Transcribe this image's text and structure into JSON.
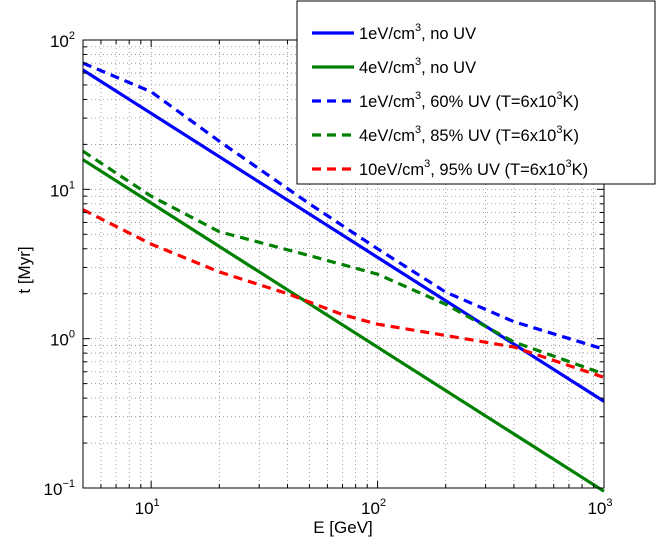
{
  "chart_data": {
    "type": "line",
    "xlabel": "E [GeV]",
    "ylabel": "t [Myr]",
    "x_scale": "log",
    "y_scale": "log",
    "xlim": [
      5,
      1000
    ],
    "ylim": [
      0.1,
      100
    ],
    "grid": true,
    "legend_position": "top-right",
    "x_ticks": [
      {
        "base": "10",
        "exp": "1",
        "value": 10
      },
      {
        "base": "10",
        "exp": "2",
        "value": 100
      },
      {
        "base": "10",
        "exp": "3",
        "value": 1000
      }
    ],
    "y_ticks": [
      {
        "base": "10",
        "exp": "−1",
        "value": 0.1
      },
      {
        "base": "10",
        "exp": "0",
        "value": 1
      },
      {
        "base": "10",
        "exp": "1",
        "value": 10
      },
      {
        "base": "10",
        "exp": "2",
        "value": 100
      }
    ],
    "series": [
      {
        "name_parts": [
          "1eV/cm",
          "3",
          ", no UV",
          "",
          ""
        ],
        "color": "#0000ff",
        "dash": "solid",
        "points": [
          [
            5,
            63.0
          ],
          [
            1000,
            0.38
          ]
        ]
      },
      {
        "name_parts": [
          "4eV/cm",
          "3",
          ", no UV",
          "",
          ""
        ],
        "color": "#008000",
        "dash": "solid",
        "points": [
          [
            5,
            15.8
          ],
          [
            1000,
            0.095
          ]
        ]
      },
      {
        "name_parts": [
          "1eV/cm",
          "3",
          ", 60% UV (T=6x10",
          "3",
          "K)"
        ],
        "color": "#0000ff",
        "dash": "dashed",
        "points": [
          [
            5,
            70.0
          ],
          [
            10,
            45.0
          ],
          [
            20,
            21.0
          ],
          [
            50,
            8.0
          ],
          [
            100,
            4.0
          ],
          [
            200,
            2.05
          ],
          [
            400,
            1.3
          ],
          [
            1000,
            0.85
          ]
        ]
      },
      {
        "name_parts": [
          "4eV/cm",
          "3",
          ", 85% UV (T=6x10",
          "3",
          "K)"
        ],
        "color": "#008000",
        "dash": "dashed",
        "points": [
          [
            5,
            18.0
          ],
          [
            10,
            9.0
          ],
          [
            20,
            5.2
          ],
          [
            50,
            3.6
          ],
          [
            100,
            2.7
          ],
          [
            200,
            1.7
          ],
          [
            400,
            0.95
          ],
          [
            1000,
            0.58
          ]
        ]
      },
      {
        "name_parts": [
          "10eV/cm",
          "3",
          ", 95% UV (T=6x10",
          "3",
          "K)"
        ],
        "color": "#ff0000",
        "dash": "dashed",
        "points": [
          [
            5,
            7.3
          ],
          [
            10,
            4.3
          ],
          [
            20,
            2.8
          ],
          [
            40,
            2.0
          ],
          [
            70,
            1.45
          ],
          [
            100,
            1.25
          ],
          [
            200,
            1.05
          ],
          [
            400,
            0.88
          ],
          [
            1000,
            0.55
          ]
        ]
      }
    ]
  }
}
